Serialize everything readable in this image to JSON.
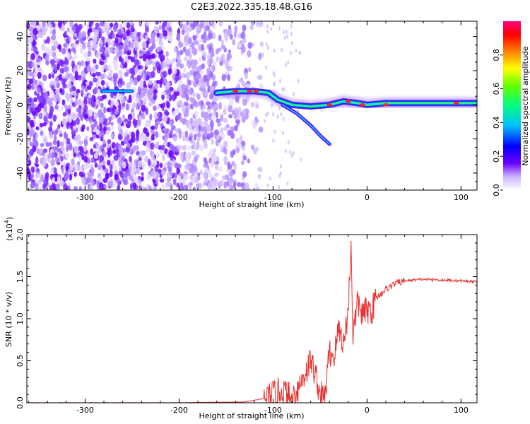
{
  "title": "C2E3.2022.335.18.48.G16",
  "chart_data": [
    {
      "type": "heatmap",
      "xlabel": "Height of straight line (km)",
      "ylabel": "Frequency (Hz)",
      "xlim": [
        -362,
        117
      ],
      "ylim": [
        -50,
        49
      ],
      "xticks": [
        "-300",
        "-200",
        "-100",
        "0",
        "100"
      ],
      "xtick_values": [
        -300,
        -200,
        -100,
        0,
        100
      ],
      "yticks": [
        "40",
        "20",
        "0",
        "-20",
        "-40"
      ],
      "ytick_values": [
        40,
        20,
        0,
        -20,
        -40
      ],
      "colorbar": {
        "label": "Normalized spectral amplitude",
        "range": [
          0,
          1
        ],
        "ticks": [
          "0.0",
          "0.2",
          "0.4",
          "0.6",
          "0.8"
        ],
        "tick_values": [
          0,
          0.2,
          0.4,
          0.6,
          0.8
        ]
      },
      "ridge": {
        "x": [
          -160,
          -140,
          -120,
          -105,
          -95,
          -80,
          -60,
          -40,
          -25,
          -10,
          0,
          20,
          50,
          80,
          100,
          117
        ],
        "y": [
          7,
          8,
          8,
          7,
          3,
          0,
          -1,
          0,
          2,
          1,
          0,
          1,
          1,
          1,
          1,
          1
        ]
      },
      "branch": {
        "x": [
          -90,
          -75,
          -60,
          -50,
          -40
        ],
        "y": [
          0,
          -5,
          -12,
          -18,
          -23
        ]
      }
    },
    {
      "type": "line",
      "xlabel": "Height of straight line (km)",
      "ylabel": "SNR (10 * v/v)",
      "y_multiplier": "(x10",
      "y_multiplier_exp": "4",
      "y_multiplier_close": ")",
      "xlim": [
        -362,
        117
      ],
      "ylim": [
        0,
        2.0
      ],
      "xticks": [
        "-300",
        "-200",
        "-100",
        "0",
        "100"
      ],
      "xtick_values": [
        -300,
        -200,
        -100,
        0,
        100
      ],
      "yticks": [
        "0.0",
        "0.5",
        "1.0",
        "1.5",
        "2.0"
      ],
      "ytick_values": [
        0,
        0.5,
        1.0,
        1.5,
        2.0
      ],
      "color": "#e83232",
      "series": [
        {
          "x": [
            -362,
            -300,
            -200,
            -130,
            -110,
            -100,
            -90,
            -80,
            -70,
            -60,
            -55,
            -50,
            -45,
            -40,
            -35,
            -30,
            -25,
            -20,
            -17,
            -15,
            -10,
            -5,
            0,
            5,
            10,
            20,
            30,
            40,
            50,
            60,
            80,
            100,
            117
          ],
          "y": [
            0.0,
            0.0,
            0.0,
            0.01,
            0.05,
            0.1,
            0.15,
            0.05,
            0.25,
            0.5,
            0.35,
            0.1,
            0.05,
            0.6,
            0.55,
            0.9,
            0.7,
            1.1,
            1.9,
            0.8,
            1.2,
            1.05,
            1.1,
            1.1,
            1.25,
            1.35,
            1.42,
            1.45,
            1.46,
            1.47,
            1.46,
            1.45,
            1.44
          ]
        }
      ]
    }
  ]
}
